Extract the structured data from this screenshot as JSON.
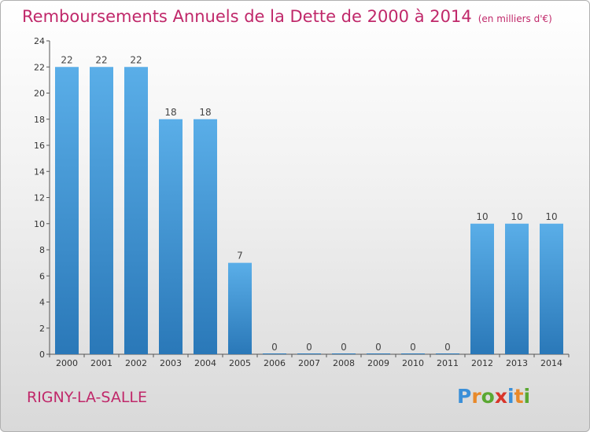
{
  "header": {
    "title": "Remboursements Annuels de la Dette de 2000 à 2014",
    "subtitle": "(en milliers d'€)"
  },
  "footer": {
    "place": "RIGNY-LA-SALLE",
    "logo_letters": [
      "P",
      "r",
      "o",
      "x",
      "i",
      "t",
      "i"
    ],
    "logo_colors": [
      "#3a8fd8",
      "#e8892a",
      "#5aa832",
      "#d8352a",
      "#3a8fd8",
      "#e8892a",
      "#5aa832"
    ]
  },
  "colors": {
    "title": "#c0286a",
    "bar_light": "#5aaee8",
    "bar_dark": "#2a78b8"
  },
  "chart_data": {
    "type": "bar",
    "title": "Remboursements Annuels de la Dette de 2000 à 2014",
    "subtitle": "(en milliers d'€)",
    "categories": [
      "2000",
      "2001",
      "2002",
      "2003",
      "2004",
      "2005",
      "2006",
      "2007",
      "2008",
      "2009",
      "2010",
      "2011",
      "2012",
      "2013",
      "2014"
    ],
    "values": [
      22,
      22,
      22,
      18,
      18,
      7,
      0,
      0,
      0,
      0,
      0,
      0,
      10,
      10,
      10
    ],
    "ylim": [
      0,
      24
    ],
    "yticks": [
      0,
      2,
      4,
      6,
      8,
      10,
      12,
      14,
      16,
      18,
      20,
      22,
      24
    ],
    "grid": false,
    "legend": "none",
    "data_labels": true
  }
}
